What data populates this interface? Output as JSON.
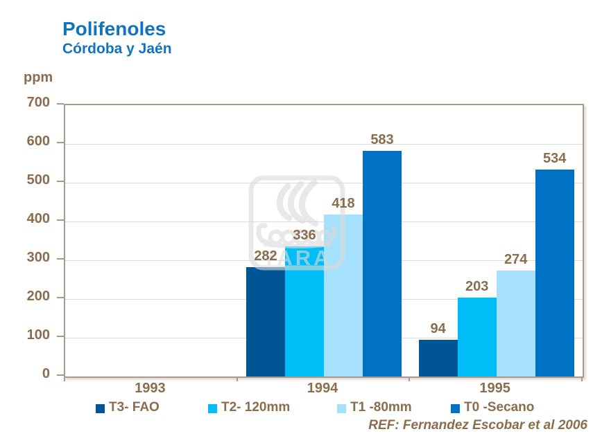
{
  "header": {
    "title": "Polifenoles",
    "subtitle": "Córdoba y Jaén"
  },
  "chart_data": {
    "type": "bar",
    "title": "Polifenoles",
    "subtitle": "Córdoba y Jaén",
    "ylabel": "ppm",
    "xlabel": "",
    "ylim": [
      0,
      700
    ],
    "ytick_step": 100,
    "grid": true,
    "legend_position": "bottom",
    "categories": [
      "1993",
      "1994",
      "1995"
    ],
    "series": [
      {
        "name": "T3- FAO",
        "color": "#005596",
        "values": [
          null,
          282,
          94
        ]
      },
      {
        "name": "T2- 120mm",
        "color": "#00BDF8",
        "values": [
          null,
          336,
          203
        ]
      },
      {
        "name": "T1 -80mm",
        "color": "#A5E0FC",
        "values": [
          null,
          418,
          274
        ]
      },
      {
        "name": "T0 -Secano",
        "color": "#0072C6",
        "values": [
          null,
          583,
          534
        ]
      }
    ]
  },
  "watermark": {
    "text": "YARA"
  },
  "footer": {
    "reference": "REF: Fernandez Escobar et al 2006"
  },
  "colors": {
    "title_blue": "#1173BD",
    "text_brown": "#8B6D4E",
    "frame": "#A79A8C",
    "gridline": "#DCDCDC",
    "watermark_gray": "#DADADA"
  }
}
